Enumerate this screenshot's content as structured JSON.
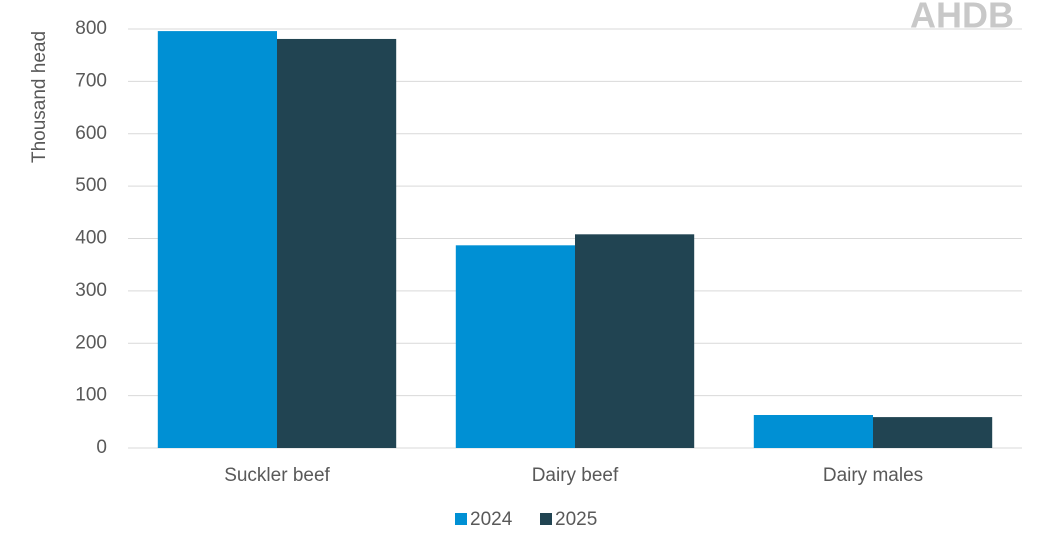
{
  "chart_data": {
    "type": "bar",
    "logo": "AHDB",
    "y_label": "Thousand head",
    "categories": [
      "Suckler beef",
      "Dairy beef",
      "Dairy males"
    ],
    "series": [
      {
        "name": "2024",
        "color": "#0090d4",
        "values": [
          796,
          387,
          63
        ]
      },
      {
        "name": "2025",
        "color": "#214452",
        "values": [
          781,
          408,
          59
        ]
      }
    ],
    "ylim": [
      0,
      800
    ],
    "yticks": [
      0,
      100,
      200,
      300,
      400,
      500,
      600,
      700,
      800
    ],
    "grid": true,
    "legend": "bottom"
  }
}
